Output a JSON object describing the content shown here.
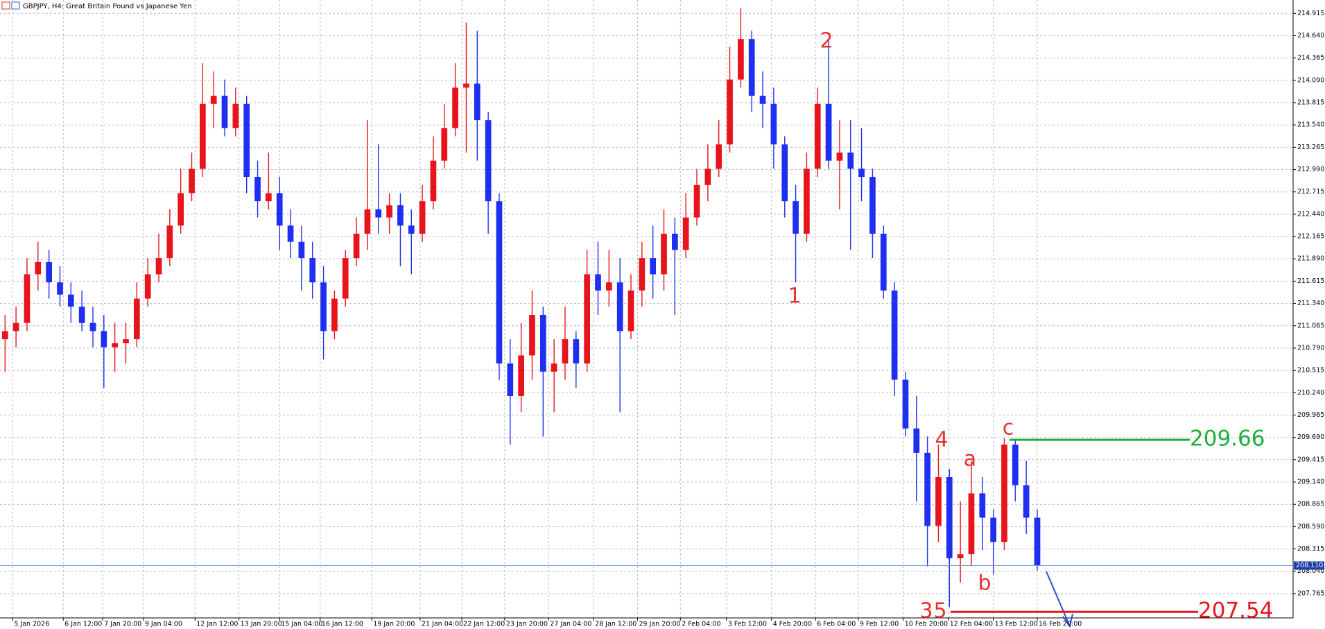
{
  "chart_data": {
    "type": "candlestick",
    "title": "GBPJPY, H4:  Great Britain Pound vs Japanese Yen",
    "up_color": "#e8141c",
    "down_color": "#1f2ff0",
    "xlim": [
      -0.46,
      117.3
    ],
    "ylim": [
      207.465,
      215.08
    ],
    "grid": true,
    "yticks": [
      214.915,
      {
        "value": 214.64,
        "label": "214.640"
      },
      214.365,
      {
        "value": 214.09,
        "label": "214.090"
      },
      213.815,
      {
        "value": 213.54,
        "label": "213.540"
      },
      213.265,
      {
        "value": 212.99,
        "label": "212.990"
      },
      212.715,
      {
        "value": 212.44,
        "label": "212.440"
      },
      212.165,
      {
        "value": 211.89,
        "label": "211.890"
      },
      211.615,
      {
        "value": 211.34,
        "label": "211.340"
      },
      211.065,
      {
        "value": 210.79,
        "label": "210.790"
      },
      210.515,
      {
        "value": 210.24,
        "label": "210.240"
      },
      209.965,
      {
        "value": 209.69,
        "label": "209.690"
      },
      209.415,
      {
        "value": 209.14,
        "label": "209.140"
      },
      208.865,
      {
        "value": 208.59,
        "label": "208.590"
      },
      208.315,
      {
        "value": 208.04,
        "label": "208.040"
      },
      207.765
    ],
    "xticks": [
      {
        "value": 0.7,
        "label": "5 Jan 2026"
      },
      {
        "value": 5.3,
        "label": "6 Jan 12:00"
      },
      {
        "value": 8.9,
        "label": "7 Jan 20:00"
      },
      {
        "value": 12.6,
        "label": "9 Jan 04:00"
      },
      {
        "value": 17.3,
        "label": "12 Jan 12:00"
      },
      {
        "value": 21.3,
        "label": "13 Jan 20:00"
      },
      {
        "value": 25,
        "label": "15 Jan 04:00"
      },
      {
        "value": 28.7,
        "label": "16 Jan 12:00"
      },
      {
        "value": 33.4,
        "label": "19 Jan 20:00"
      },
      {
        "value": 37.8,
        "label": "21 Jan 04:00"
      },
      {
        "value": 41.6,
        "label": "22 Jan 12:00"
      },
      {
        "value": 45.5,
        "label": "23 Jan 20:00"
      },
      {
        "value": 49.5,
        "label": "27 Jan 04:00"
      },
      {
        "value": 53.6,
        "label": "28 Jan 12:00"
      },
      {
        "value": 57.6,
        "label": "29 Jan 20:00"
      },
      {
        "value": 61.5,
        "label": "2 Feb 04:00"
      },
      {
        "value": 65.7,
        "label": "3 Feb 12:00"
      },
      {
        "value": 69.8,
        "label": "4 Feb 20:00"
      },
      {
        "value": 73.8,
        "label": "6 Feb 04:00"
      },
      {
        "value": 77.7,
        "label": "9 Feb 12:00"
      },
      {
        "value": 81.8,
        "label": "10 Feb 20:00"
      },
      {
        "value": 85.9,
        "label": "12 Feb 04:00"
      },
      {
        "value": 90,
        "label": "13 Feb 12:00"
      },
      {
        "value": 94,
        "label": "16 Feb 20:00"
      }
    ],
    "open": [
      210.9,
      211.0,
      211.1,
      211.7,
      211.85,
      211.6,
      211.45,
      211.3,
      211.1,
      211.0,
      210.8,
      210.85,
      210.9,
      211.4,
      211.7,
      211.9,
      212.3,
      212.7,
      213.0,
      213.8,
      213.9,
      213.5,
      213.8,
      212.9,
      212.6,
      212.7,
      212.3,
      212.1,
      211.9,
      211.6,
      211.0,
      211.4,
      211.9,
      212.2,
      212.5,
      212.4,
      212.55,
      212.3,
      212.2,
      212.6,
      213.1,
      213.5,
      214.0,
      214.05,
      213.6,
      212.6,
      210.6,
      210.2,
      210.7,
      211.2,
      210.5,
      210.6,
      210.9,
      210.6,
      211.7,
      211.5,
      211.6,
      211.0,
      211.5,
      211.9,
      211.7,
      212.2,
      212.0,
      212.4,
      212.8,
      213.0,
      213.3,
      214.1,
      214.6,
      213.9,
      213.8,
      213.3,
      212.6,
      212.2,
      213.0,
      213.8,
      213.1,
      213.2,
      213.0,
      212.9,
      212.2,
      211.5,
      210.4,
      209.8,
      209.5,
      208.6,
      209.2,
      208.2,
      208.25,
      209.0,
      208.7,
      208.4,
      209.6,
      209.1,
      208.7
    ],
    "high": [
      211.2,
      211.3,
      211.9,
      212.1,
      212.0,
      211.8,
      211.6,
      211.5,
      211.3,
      211.2,
      211.1,
      211.1,
      211.6,
      211.9,
      212.2,
      212.5,
      213.0,
      213.2,
      214.3,
      214.2,
      214.1,
      214.0,
      213.9,
      213.1,
      213.2,
      212.9,
      212.5,
      212.3,
      212.1,
      211.8,
      211.5,
      212.0,
      212.4,
      213.6,
      213.3,
      212.7,
      212.7,
      212.5,
      212.8,
      213.4,
      213.8,
      214.3,
      214.8,
      214.7,
      213.7,
      212.7,
      210.9,
      211.1,
      211.5,
      211.3,
      210.9,
      211.3,
      211.0,
      212.0,
      212.1,
      212.0,
      211.9,
      211.7,
      212.1,
      212.3,
      212.5,
      212.4,
      212.7,
      213.0,
      213.3,
      213.6,
      214.5,
      214.98,
      214.7,
      214.2,
      214.0,
      213.4,
      212.8,
      213.2,
      214.0,
      214.6,
      213.6,
      213.6,
      213.5,
      213.0,
      212.3,
      211.6,
      210.5,
      210.2,
      209.7,
      209.6,
      209.3,
      208.9,
      209.4,
      209.2,
      208.8,
      209.68,
      209.65,
      209.4,
      208.8
    ],
    "low": [
      210.5,
      210.8,
      211.0,
      211.5,
      211.4,
      211.3,
      211.1,
      211.0,
      210.8,
      210.3,
      210.5,
      210.6,
      210.8,
      211.3,
      211.6,
      211.8,
      212.2,
      212.6,
      212.9,
      213.5,
      213.4,
      213.4,
      212.7,
      212.4,
      212.5,
      212.0,
      211.9,
      211.5,
      211.4,
      210.65,
      210.9,
      211.3,
      211.8,
      212.0,
      212.2,
      212.2,
      211.8,
      211.7,
      212.1,
      212.5,
      213.0,
      213.4,
      213.2,
      213.1,
      212.2,
      210.4,
      209.6,
      210.0,
      210.4,
      209.7,
      210.0,
      210.4,
      210.3,
      210.5,
      211.2,
      211.3,
      210.0,
      210.9,
      211.3,
      211.4,
      211.5,
      211.2,
      211.9,
      212.3,
      212.6,
      212.9,
      213.2,
      214.0,
      213.7,
      213.5,
      213.0,
      212.4,
      211.6,
      212.1,
      212.9,
      213.0,
      212.5,
      212.0,
      212.6,
      211.9,
      211.4,
      210.2,
      209.7,
      208.9,
      208.1,
      208.4,
      207.6,
      207.9,
      208.1,
      208.3,
      208.0,
      208.3,
      208.9,
      208.5,
      208.05
    ],
    "close": [
      211.0,
      211.1,
      211.7,
      211.85,
      211.6,
      211.45,
      211.3,
      211.1,
      211.0,
      210.8,
      210.85,
      210.9,
      211.4,
      211.7,
      211.9,
      212.3,
      212.7,
      213.0,
      213.8,
      213.9,
      213.5,
      213.8,
      212.9,
      212.6,
      212.7,
      212.3,
      212.1,
      211.9,
      211.6,
      211.0,
      211.4,
      211.9,
      212.2,
      212.5,
      212.4,
      212.55,
      212.3,
      212.2,
      212.6,
      213.1,
      213.5,
      214.0,
      214.05,
      213.6,
      212.6,
      210.6,
      210.2,
      210.7,
      211.2,
      210.5,
      210.6,
      210.9,
      210.6,
      211.7,
      211.5,
      211.6,
      211.0,
      211.5,
      211.9,
      211.7,
      212.2,
      212.0,
      212.4,
      212.8,
      213.0,
      213.3,
      214.1,
      214.6,
      213.9,
      213.8,
      213.3,
      212.6,
      212.2,
      213.0,
      213.8,
      213.1,
      213.2,
      213.0,
      212.9,
      212.2,
      211.5,
      210.4,
      209.8,
      209.5,
      208.6,
      209.2,
      208.2,
      208.25,
      209.0,
      208.7,
      208.4,
      209.6,
      209.1,
      208.7,
      208.11
    ],
    "current_price": {
      "value": 208.11,
      "label": "208.110"
    },
    "levels": [
      {
        "value": 209.66,
        "color": "#1fae3c"
      },
      {
        "value": 207.54,
        "color": "#e8141c"
      }
    ],
    "annotations": [
      "1",
      "2",
      "3",
      "5",
      "4",
      "a",
      "b",
      "c"
    ]
  }
}
